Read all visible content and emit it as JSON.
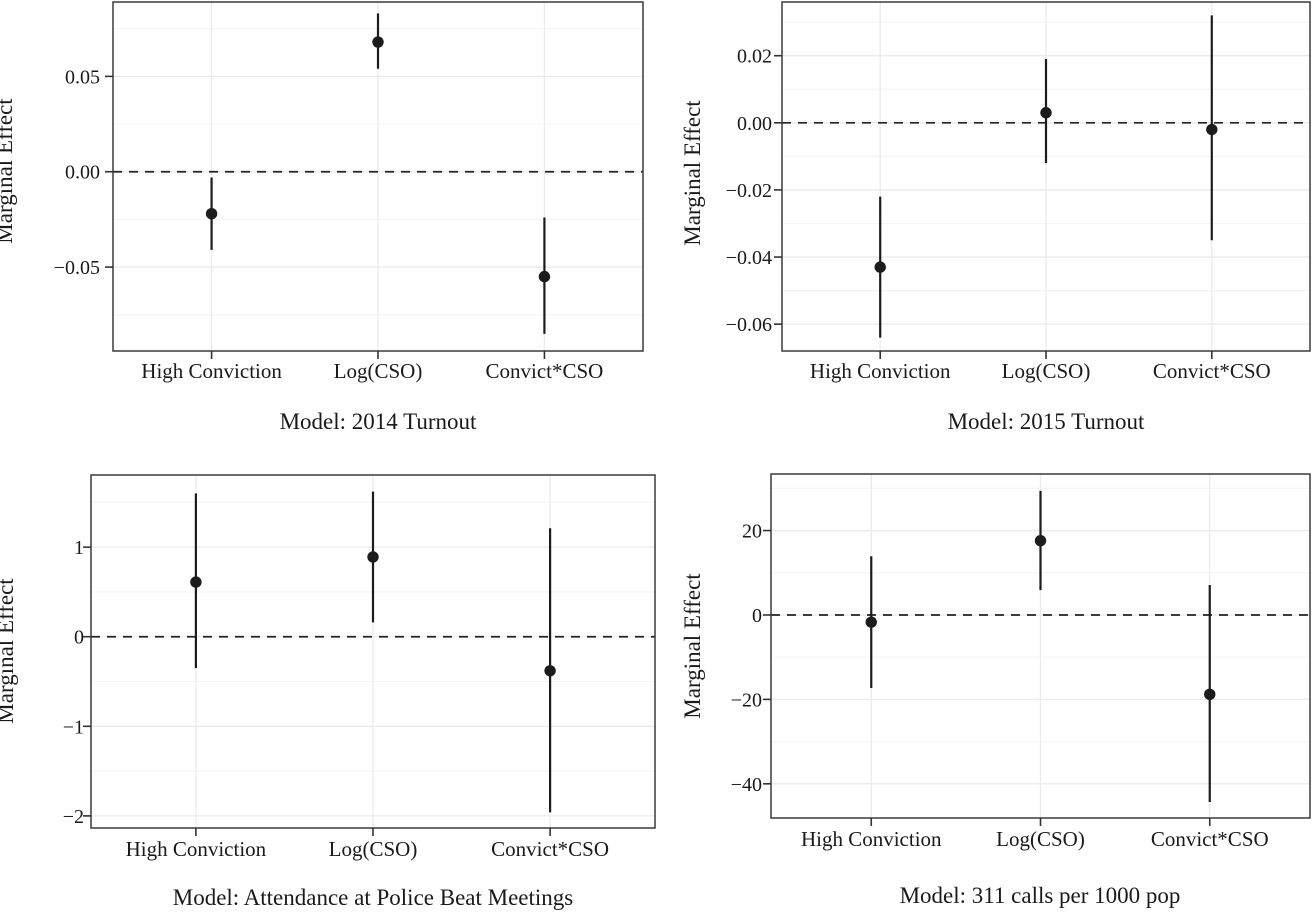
{
  "figure": {
    "ylabel": "Marginal Effect",
    "categories": [
      "High Conviction",
      "Log(CSO)",
      "Convict*CSO"
    ]
  },
  "colors": {
    "background": "#ffffff",
    "text": "#1a1a1a",
    "point": "#1c1c1c",
    "error_bar": "#1c1c1c",
    "zero_line": "#222222",
    "panel_border": "#3a3a3a",
    "tick_mark": "#333333",
    "grid_major": "#ebebeb",
    "grid_minor": "#f5f5f5"
  },
  "chart_data": [
    {
      "type": "scatter",
      "title": "Model: 2014 Turnout",
      "ylabel": "Marginal Effect",
      "categories": [
        "High Conviction",
        "Log(CSO)",
        "Convict*CSO"
      ],
      "points": [
        {
          "category": "High Conviction",
          "estimate": -0.022,
          "ci_lower": -0.041,
          "ci_upper": -0.003
        },
        {
          "category": "Log(CSO)",
          "estimate": 0.068,
          "ci_lower": 0.054,
          "ci_upper": 0.083
        },
        {
          "category": "Convict*CSO",
          "estimate": -0.055,
          "ci_lower": -0.085,
          "ci_upper": -0.024
        }
      ],
      "ylim": [
        -0.094,
        0.089
      ],
      "yticks": [
        {
          "value": 0.05,
          "label": "0.05"
        },
        {
          "value": 0.0,
          "label": "0.00"
        },
        {
          "value": -0.05,
          "label": "−0.05"
        }
      ],
      "yticks_minor": [
        0.075,
        0.025,
        -0.025,
        -0.075
      ],
      "zero_line": true,
      "grid": true,
      "legend": false
    },
    {
      "type": "scatter",
      "title": "Model: 2015 Turnout",
      "ylabel": "Marginal Effect",
      "categories": [
        "High Conviction",
        "Log(CSO)",
        "Convict*CSO"
      ],
      "points": [
        {
          "category": "High Conviction",
          "estimate": -0.043,
          "ci_lower": -0.064,
          "ci_upper": -0.022
        },
        {
          "category": "Log(CSO)",
          "estimate": 0.003,
          "ci_lower": -0.012,
          "ci_upper": 0.019
        },
        {
          "category": "Convict*CSO",
          "estimate": -0.002,
          "ci_lower": -0.035,
          "ci_upper": 0.032
        }
      ],
      "ylim": [
        -0.068,
        0.036
      ],
      "yticks": [
        {
          "value": 0.02,
          "label": "0.02"
        },
        {
          "value": 0.0,
          "label": "0.00"
        },
        {
          "value": -0.02,
          "label": "−0.02"
        },
        {
          "value": -0.04,
          "label": "−0.04"
        },
        {
          "value": -0.06,
          "label": "−0.06"
        }
      ],
      "yticks_minor": [
        0.03,
        0.01,
        -0.01,
        -0.03,
        -0.05
      ],
      "zero_line": true,
      "grid": true,
      "legend": false
    },
    {
      "type": "scatter",
      "title": "Model: Attendance at Police Beat Meetings",
      "ylabel": "Marginal Effect",
      "categories": [
        "High Conviction",
        "Log(CSO)",
        "Convict*CSO"
      ],
      "points": [
        {
          "category": "High Conviction",
          "estimate": 0.61,
          "ci_lower": -0.35,
          "ci_upper": 1.6
        },
        {
          "category": "Log(CSO)",
          "estimate": 0.89,
          "ci_lower": 0.16,
          "ci_upper": 1.62
        },
        {
          "category": "Convict*CSO",
          "estimate": -0.38,
          "ci_lower": -1.96,
          "ci_upper": 1.21
        }
      ],
      "ylim": [
        -2.135,
        1.805
      ],
      "yticks": [
        {
          "value": 1,
          "label": "1"
        },
        {
          "value": 0,
          "label": "0"
        },
        {
          "value": -1,
          "label": "−1"
        },
        {
          "value": -2,
          "label": "−2"
        }
      ],
      "yticks_minor": [
        1.5,
        0.5,
        -0.5,
        -1.5
      ],
      "zero_line": true,
      "grid": true,
      "legend": false
    },
    {
      "type": "scatter",
      "title": "Model: 311 calls per 1000 pop",
      "ylabel": "Marginal Effect",
      "categories": [
        "High Conviction",
        "Log(CSO)",
        "Convict*CSO"
      ],
      "points": [
        {
          "category": "High Conviction",
          "estimate": -1.7,
          "ci_lower": -17.3,
          "ci_upper": 13.9
        },
        {
          "category": "Log(CSO)",
          "estimate": 17.6,
          "ci_lower": 5.9,
          "ci_upper": 29.4
        },
        {
          "category": "Convict*CSO",
          "estimate": -18.8,
          "ci_lower": -44.3,
          "ci_upper": 7.1
        }
      ],
      "ylim": [
        -48.1,
        33.4
      ],
      "yticks": [
        {
          "value": 20,
          "label": "20"
        },
        {
          "value": 0,
          "label": "0"
        },
        {
          "value": -20,
          "label": "−20"
        },
        {
          "value": -40,
          "label": "−40"
        }
      ],
      "yticks_minor": [
        30,
        10,
        -10,
        -30
      ],
      "zero_line": true,
      "grid": true,
      "legend": false
    }
  ]
}
